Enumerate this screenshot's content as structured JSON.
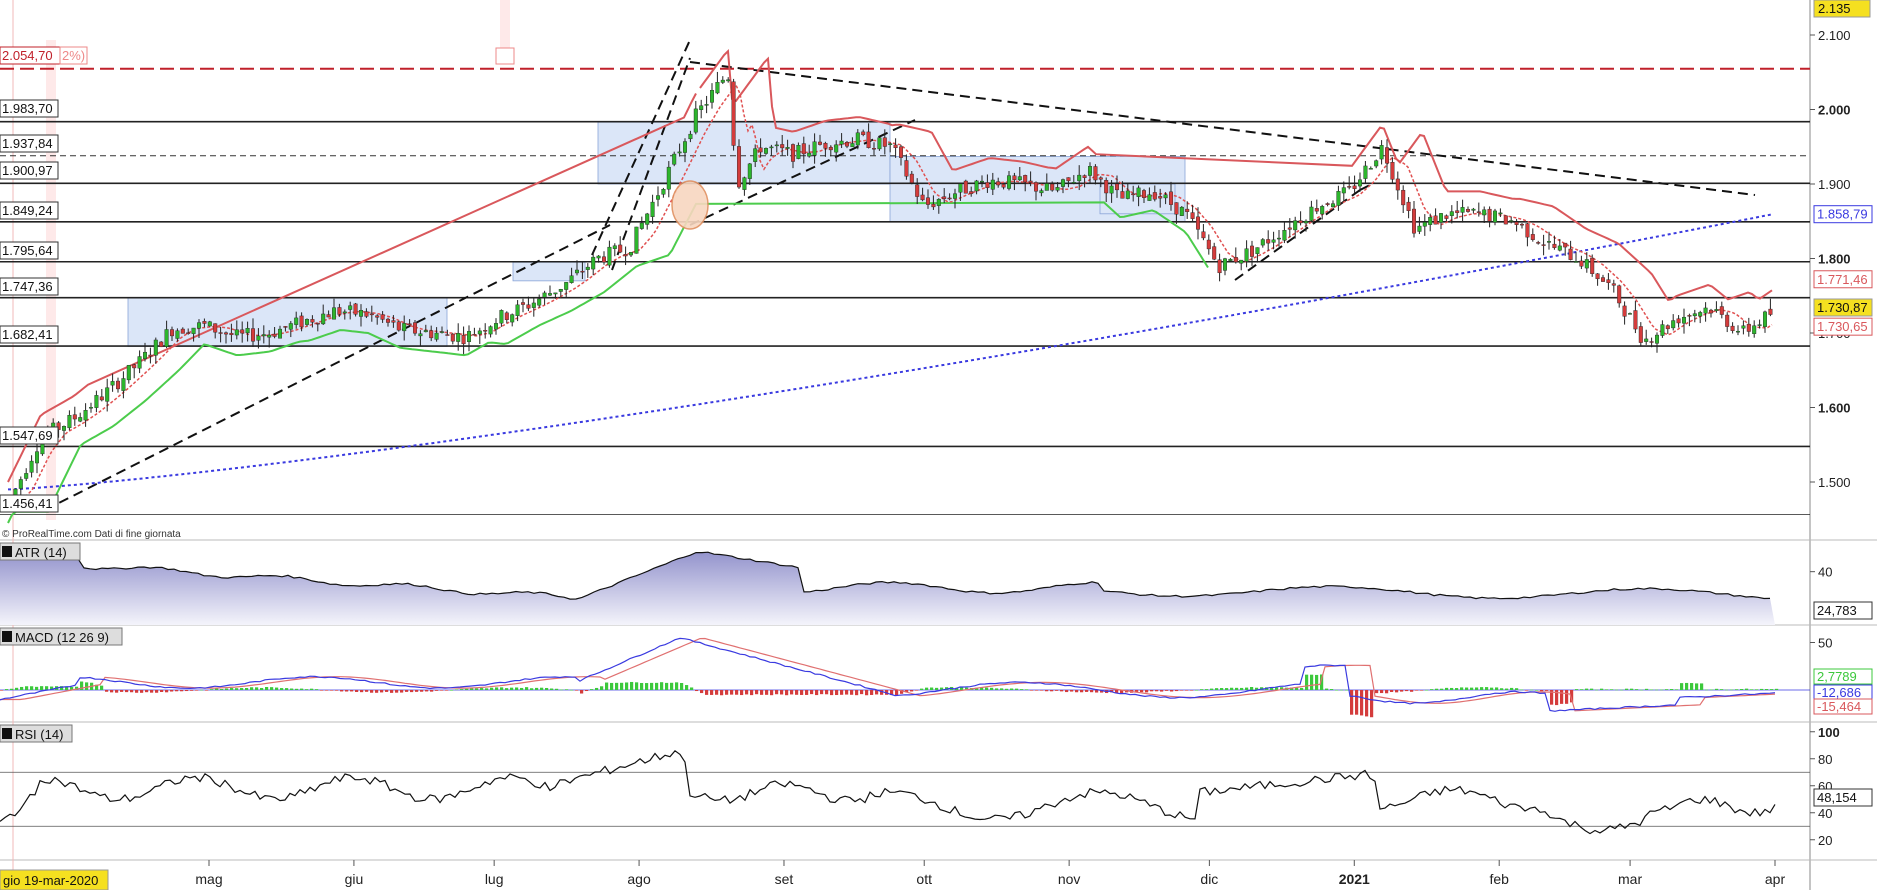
{
  "watermark": "© ProRealTime.com  Dati di fine giornata",
  "price_axis": {
    "ticks": [
      "2.100",
      "2.000",
      "1.900",
      "1.800",
      "1.700",
      "1.600",
      "1.500"
    ],
    "last_value_top": "2.135"
  },
  "level_labels": [
    "2.054,70",
    "1.983,70",
    "1.937,84",
    "1.900,97",
    "1.849,24",
    "1.795,64",
    "1.747,36",
    "1.682,41",
    "1.547,69",
    "1.456,41"
  ],
  "level_sub_label": "2%)",
  "right_labels": {
    "sma200": "1.858,79",
    "trail": "1.771,46",
    "current": "1.730,87",
    "ema": "1.730,65"
  },
  "colors": {
    "bull": "#2db52d",
    "bear": "#d43c3c",
    "red_line": "#d9585c",
    "green_line": "#4ccc4c",
    "blue_dotted": "#3a3ae0",
    "box_fill": "#dbe6f8",
    "current_badge": "#f5e020"
  },
  "atr": {
    "label": "ATR (14)",
    "value": "24,783",
    "ticks": [
      "40"
    ]
  },
  "macd": {
    "label": "MACD (12 26 9)",
    "values": [
      "2,7789",
      "-12,686",
      "-15,464"
    ],
    "ticks": [
      "50"
    ]
  },
  "rsi": {
    "label": "RSI (14)",
    "value": "48,154",
    "ticks": [
      "100",
      "80",
      "60",
      "40",
      "20"
    ]
  },
  "x_axis": {
    "start_label": "gio 19-mar-2020",
    "months": [
      "mag",
      "giu",
      "lug",
      "ago",
      "set",
      "ott",
      "nov",
      "dic",
      "2021",
      "feb",
      "mar",
      "apr"
    ]
  },
  "chart_data": {
    "type": "candlestick",
    "instrument_period": "daily",
    "ylim": [
      1440,
      2140
    ],
    "x_range": [
      "2020-03-19",
      "2021-04-01"
    ],
    "horizontal_levels": [
      2054.7,
      1983.7,
      1937.84,
      1900.97,
      1849.24,
      1795.64,
      1747.36,
      1682.41,
      1547.69,
      1456.41
    ],
    "close_path": [
      [
        "2020-03-19",
        1470
      ],
      [
        "2020-03-26",
        1560
      ],
      [
        "2020-04-02",
        1585
      ],
      [
        "2020-04-09",
        1620
      ],
      [
        "2020-04-16",
        1660
      ],
      [
        "2020-04-23",
        1705
      ],
      [
        "2020-04-30",
        1710
      ],
      [
        "2020-05-07",
        1695
      ],
      [
        "2020-05-14",
        1700
      ],
      [
        "2020-05-21",
        1715
      ],
      [
        "2020-05-28",
        1730
      ],
      [
        "2020-06-04",
        1725
      ],
      [
        "2020-06-11",
        1705
      ],
      [
        "2020-06-18",
        1700
      ],
      [
        "2020-06-25",
        1695
      ],
      [
        "2020-07-02",
        1720
      ],
      [
        "2020-07-09",
        1740
      ],
      [
        "2020-07-16",
        1765
      ],
      [
        "2020-07-23",
        1800
      ],
      [
        "2020-07-30",
        1815
      ],
      [
        "2020-08-06",
        1900
      ],
      [
        "2020-08-13",
        1990
      ],
      [
        "2020-08-20",
        2050
      ],
      [
        "2020-08-22",
        1900
      ],
      [
        "2020-08-27",
        1950
      ],
      [
        "2020-09-03",
        1940
      ],
      [
        "2020-09-10",
        1955
      ],
      [
        "2020-09-17",
        1960
      ],
      [
        "2020-09-24",
        1950
      ],
      [
        "2020-10-01",
        1870
      ],
      [
        "2020-10-08",
        1890
      ],
      [
        "2020-10-15",
        1905
      ],
      [
        "2020-10-22",
        1900
      ],
      [
        "2020-10-29",
        1890
      ],
      [
        "2020-11-05",
        1920
      ],
      [
        "2020-11-12",
        1880
      ],
      [
        "2020-11-19",
        1890
      ],
      [
        "2020-11-26",
        1860
      ],
      [
        "2020-12-03",
        1790
      ],
      [
        "2020-12-10",
        1810
      ],
      [
        "2020-12-17",
        1840
      ],
      [
        "2020-12-24",
        1870
      ],
      [
        "2020-12-31",
        1890
      ],
      [
        "2021-01-07",
        1950
      ],
      [
        "2021-01-14",
        1840
      ],
      [
        "2021-01-21",
        1860
      ],
      [
        "2021-01-28",
        1860
      ],
      [
        "2021-02-04",
        1850
      ],
      [
        "2021-02-11",
        1820
      ],
      [
        "2021-02-18",
        1800
      ],
      [
        "2021-02-25",
        1760
      ],
      [
        "2021-03-04",
        1690
      ],
      [
        "2021-03-11",
        1720
      ],
      [
        "2021-03-18",
        1735
      ],
      [
        "2021-03-25",
        1700
      ],
      [
        "2021-04-01",
        1730
      ]
    ],
    "sma200_end": 1858.79,
    "trailing_stop_end": 1771.46,
    "ema_end": 1730.65,
    "last": 1730.87,
    "atr_last": 24.783,
    "macd_last": [
      2.7789,
      -12.686,
      -15.464
    ],
    "rsi_last": 48.154
  }
}
